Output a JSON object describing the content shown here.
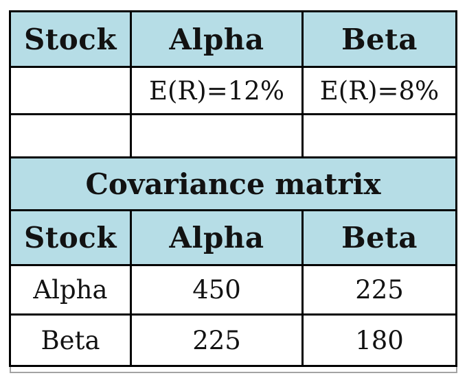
{
  "colors": {
    "header_fill": "#b6dde6",
    "border": "#000000",
    "text": "#121212",
    "partial_row_border": "#a3a3a3",
    "page_background": "#ffffff"
  },
  "chart_data": [
    {
      "type": "table",
      "title": "",
      "columns": [
        "Stock",
        "Alpha",
        "Beta"
      ],
      "rows": [
        [
          "",
          "E(R)=12%",
          "E(R)=8%"
        ],
        [
          "",
          "",
          ""
        ]
      ],
      "layout": "header row shaded light blue, black grid borders, centered text"
    },
    {
      "type": "table",
      "title": "Covariance matrix",
      "columns": [
        "Stock",
        "Alpha",
        "Beta"
      ],
      "rows": [
        [
          "Alpha",
          "450",
          "225"
        ],
        [
          "Beta",
          "225",
          "180"
        ]
      ],
      "layout": "title row spans all columns, title and header rows shaded light blue, black grid borders, centered text"
    }
  ]
}
